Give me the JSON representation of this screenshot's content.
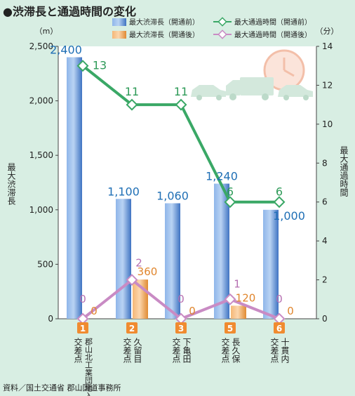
{
  "title": "●渋滞長と通過時間の変化",
  "source": "資料／国土交通省 郡山国道事務所",
  "chart_data": {
    "type": "bar",
    "categories": [
      {
        "num": "1",
        "name": "郡山北工業団地入口",
        "suffix": "交差点"
      },
      {
        "num": "2",
        "name": "久留目",
        "suffix": "交差点"
      },
      {
        "num": "3",
        "name": "下亀田",
        "suffix": "交差点"
      },
      {
        "num": "5",
        "name": "長久保",
        "suffix": "交差点"
      },
      {
        "num": "6",
        "name": "十貫内",
        "suffix": "交差点"
      }
    ],
    "left_axis": {
      "label": "最大渋滞長",
      "unit": "（m）",
      "min": 0,
      "max": 2500,
      "ticks": [
        "0",
        "500",
        "1,000",
        "1,500",
        "2,000",
        "2,500"
      ]
    },
    "right_axis": {
      "label": "最大通過時間",
      "unit": "（分）",
      "min": 0,
      "max": 14,
      "ticks": [
        "0",
        "2",
        "4",
        "6",
        "8",
        "10",
        "12",
        "14"
      ]
    },
    "series": [
      {
        "name": "最大渋滞長（開通前）",
        "kind": "bar",
        "axis": "left",
        "color": "#5b8fd6",
        "values": [
          2400,
          1100,
          1060,
          1240,
          1000
        ],
        "labels": [
          "2,400",
          "1,100",
          "1,060",
          "1,240",
          "1,000"
        ]
      },
      {
        "name": "最大渋滞長（開通後）",
        "kind": "bar",
        "axis": "left",
        "color": "#f0a256",
        "values": [
          0,
          360,
          0,
          120,
          0
        ],
        "labels": [
          "0",
          "360",
          "0",
          "120",
          "0"
        ]
      },
      {
        "name": "最大通過時間（開通前）",
        "kind": "line",
        "axis": "right",
        "color": "#3aa866",
        "values": [
          13,
          11,
          11,
          6,
          6
        ],
        "labels": [
          "13",
          "11",
          "11",
          "6",
          "6"
        ]
      },
      {
        "name": "最大通過時間（開通後）",
        "kind": "line",
        "axis": "right",
        "color": "#c98bc4",
        "values": [
          0,
          2,
          0,
          1,
          0
        ],
        "labels": [
          "0",
          "2",
          "0",
          "1",
          "0"
        ]
      }
    ],
    "legend_position": "top",
    "grid": false
  }
}
